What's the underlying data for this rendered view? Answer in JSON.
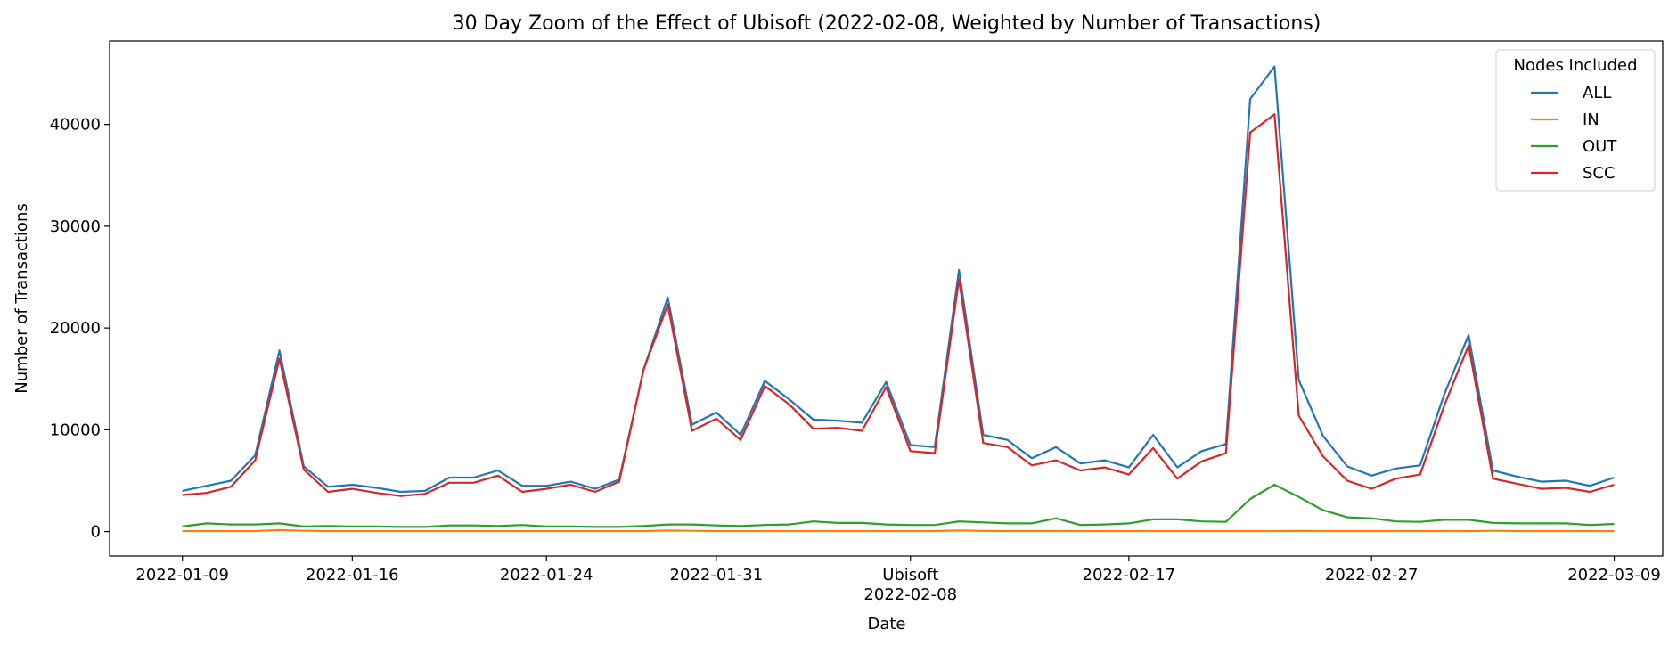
{
  "chart_data": {
    "type": "line",
    "title": "30 Day Zoom of the Effect of Ubisoft (2022-02-08, Weighted by Number of Transactions)",
    "xlabel": "Date",
    "ylabel": "Number of Transactions",
    "xlim": [
      "2022-01-06",
      "2022-03-11"
    ],
    "ylim": [
      -2400,
      48200
    ],
    "y_ticks": [
      0,
      10000,
      20000,
      30000,
      40000
    ],
    "x_ticks": [
      {
        "date": "2022-01-09",
        "label": "2022-01-09"
      },
      {
        "date": "2022-01-16",
        "label": "2022-01-16"
      },
      {
        "date": "2022-01-24",
        "label": "2022-01-24"
      },
      {
        "date": "2022-01-31",
        "label": "2022-01-31"
      },
      {
        "date": "2022-02-08",
        "label": "Ubisoft\n2022-02-08"
      },
      {
        "date": "2022-02-17",
        "label": "2022-02-17"
      },
      {
        "date": "2022-02-27",
        "label": "2022-02-27"
      },
      {
        "date": "2022-03-09",
        "label": "2022-03-09"
      }
    ],
    "event": {
      "date": "2022-02-08",
      "label": "Ubisoft"
    },
    "x": [
      "2022-01-09",
      "2022-01-10",
      "2022-01-11",
      "2022-01-12",
      "2022-01-13",
      "2022-01-14",
      "2022-01-15",
      "2022-01-16",
      "2022-01-17",
      "2022-01-18",
      "2022-01-19",
      "2022-01-20",
      "2022-01-21",
      "2022-01-22",
      "2022-01-23",
      "2022-01-24",
      "2022-01-25",
      "2022-01-26",
      "2022-01-27",
      "2022-01-28",
      "2022-01-29",
      "2022-01-30",
      "2022-01-31",
      "2022-02-01",
      "2022-02-02",
      "2022-02-03",
      "2022-02-04",
      "2022-02-05",
      "2022-02-06",
      "2022-02-07",
      "2022-02-08",
      "2022-02-09",
      "2022-02-10",
      "2022-02-11",
      "2022-02-12",
      "2022-02-13",
      "2022-02-14",
      "2022-02-15",
      "2022-02-16",
      "2022-02-17",
      "2022-02-18",
      "2022-02-19",
      "2022-02-20",
      "2022-02-21",
      "2022-02-22",
      "2022-02-23",
      "2022-02-24",
      "2022-02-25",
      "2022-02-26",
      "2022-02-27",
      "2022-02-28",
      "2022-03-01",
      "2022-03-02",
      "2022-03-03",
      "2022-03-04",
      "2022-03-05",
      "2022-03-06",
      "2022-03-07",
      "2022-03-08",
      "2022-03-09"
    ],
    "series": [
      {
        "name": "ALL",
        "color": "#1f77b4",
        "values": [
          4000,
          4500,
          5000,
          7500,
          17800,
          6400,
          4400,
          4600,
          4300,
          3900,
          4000,
          5300,
          5300,
          6000,
          4500,
          4500,
          4900,
          4200,
          5100,
          15900,
          23000,
          10500,
          11700,
          9500,
          14800,
          13000,
          11000,
          10900,
          10700,
          14700,
          8500,
          8300,
          25700,
          9500,
          9000,
          7200,
          8300,
          6700,
          7000,
          6300,
          9500,
          6300,
          7900,
          8600,
          42500,
          45700,
          14900,
          9400,
          6400,
          5500,
          6200,
          6500,
          13500,
          19300,
          6000,
          5400,
          4900,
          5000,
          4500,
          5300
        ]
      },
      {
        "name": "IN",
        "color": "#ff7f0e",
        "values": [
          50,
          50,
          50,
          50,
          150,
          80,
          50,
          50,
          50,
          50,
          50,
          50,
          50,
          50,
          50,
          50,
          50,
          50,
          50,
          50,
          100,
          80,
          50,
          50,
          50,
          50,
          50,
          50,
          50,
          50,
          50,
          50,
          100,
          60,
          50,
          50,
          50,
          50,
          50,
          50,
          50,
          50,
          50,
          50,
          50,
          50,
          60,
          50,
          50,
          50,
          50,
          50,
          50,
          50,
          80,
          50,
          50,
          50,
          50,
          50
        ]
      },
      {
        "name": "OUT",
        "color": "#2ca02c",
        "values": [
          500,
          800,
          700,
          700,
          800,
          500,
          550,
          500,
          500,
          450,
          450,
          600,
          600,
          550,
          650,
          500,
          500,
          450,
          450,
          550,
          700,
          700,
          600,
          550,
          650,
          700,
          1000,
          850,
          850,
          700,
          650,
          650,
          1000,
          900,
          800,
          800,
          1300,
          650,
          700,
          800,
          1200,
          1200,
          1000,
          950,
          3200,
          4600,
          3400,
          2100,
          1400,
          1300,
          1000,
          950,
          1150,
          1150,
          850,
          800,
          800,
          800,
          650,
          750
        ]
      },
      {
        "name": "SCC",
        "color": "#d62728",
        "values": [
          3600,
          3800,
          4400,
          7000,
          17000,
          6100,
          3900,
          4200,
          3800,
          3500,
          3700,
          4800,
          4800,
          5500,
          3900,
          4200,
          4600,
          3900,
          4900,
          15900,
          22300,
          9900,
          11100,
          9000,
          14300,
          12500,
          10100,
          10200,
          9900,
          14200,
          7900,
          7700,
          24800,
          8700,
          8300,
          6500,
          7000,
          6000,
          6300,
          5600,
          8200,
          5200,
          6900,
          7700,
          39200,
          41000,
          11400,
          7400,
          5000,
          4200,
          5200,
          5600,
          12400,
          18300,
          5200,
          4700,
          4200,
          4300,
          3900,
          4600
        ]
      }
    ],
    "legend": {
      "title": "Nodes Included",
      "placement": "top-right"
    },
    "grid": false
  }
}
